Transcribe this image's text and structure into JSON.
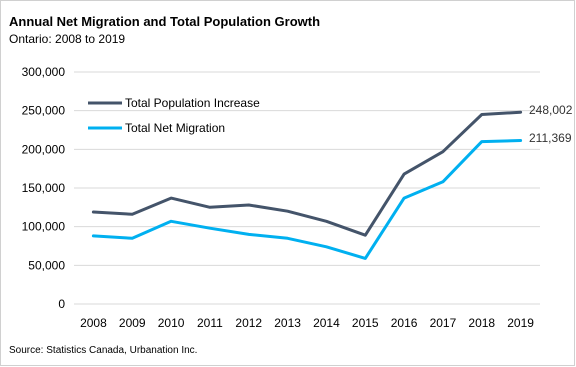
{
  "header": {
    "title": "Annual Net Migration and Total Population Growth",
    "subtitle": "Ontario: 2008 to 2019"
  },
  "footer": {
    "source": "Source: Statistics Canada, Urbanation Inc."
  },
  "colors": {
    "population": "#44546A",
    "migration": "#00B0F0",
    "grid": "#D9D9D9"
  },
  "chart_data": {
    "type": "line",
    "title": "Annual Net Migration and Total Population Growth",
    "subtitle": "Ontario: 2008 to 2019",
    "xlabel": "",
    "ylabel": "",
    "x": [
      "2008",
      "2009",
      "2010",
      "2011",
      "2012",
      "2013",
      "2014",
      "2015",
      "2016",
      "2017",
      "2018",
      "2019"
    ],
    "ylim": [
      0,
      300000
    ],
    "yticks": [
      0,
      50000,
      100000,
      150000,
      200000,
      250000,
      300000
    ],
    "ytick_labels": [
      "0",
      "50,000",
      "100,000",
      "150,000",
      "200,000",
      "250,000",
      "300,000"
    ],
    "grid": true,
    "legend_position": "top-left",
    "series": [
      {
        "name": "Total Population Increase",
        "values": [
          119000,
          116000,
          137000,
          125000,
          128000,
          120000,
          107000,
          89000,
          168000,
          197000,
          245000,
          248002
        ],
        "end_label": "248,002"
      },
      {
        "name": "Total Net Migration",
        "values": [
          88000,
          85000,
          107000,
          98000,
          90000,
          85000,
          74000,
          59000,
          137000,
          158000,
          210000,
          211369
        ],
        "end_label": "211,369"
      }
    ]
  }
}
